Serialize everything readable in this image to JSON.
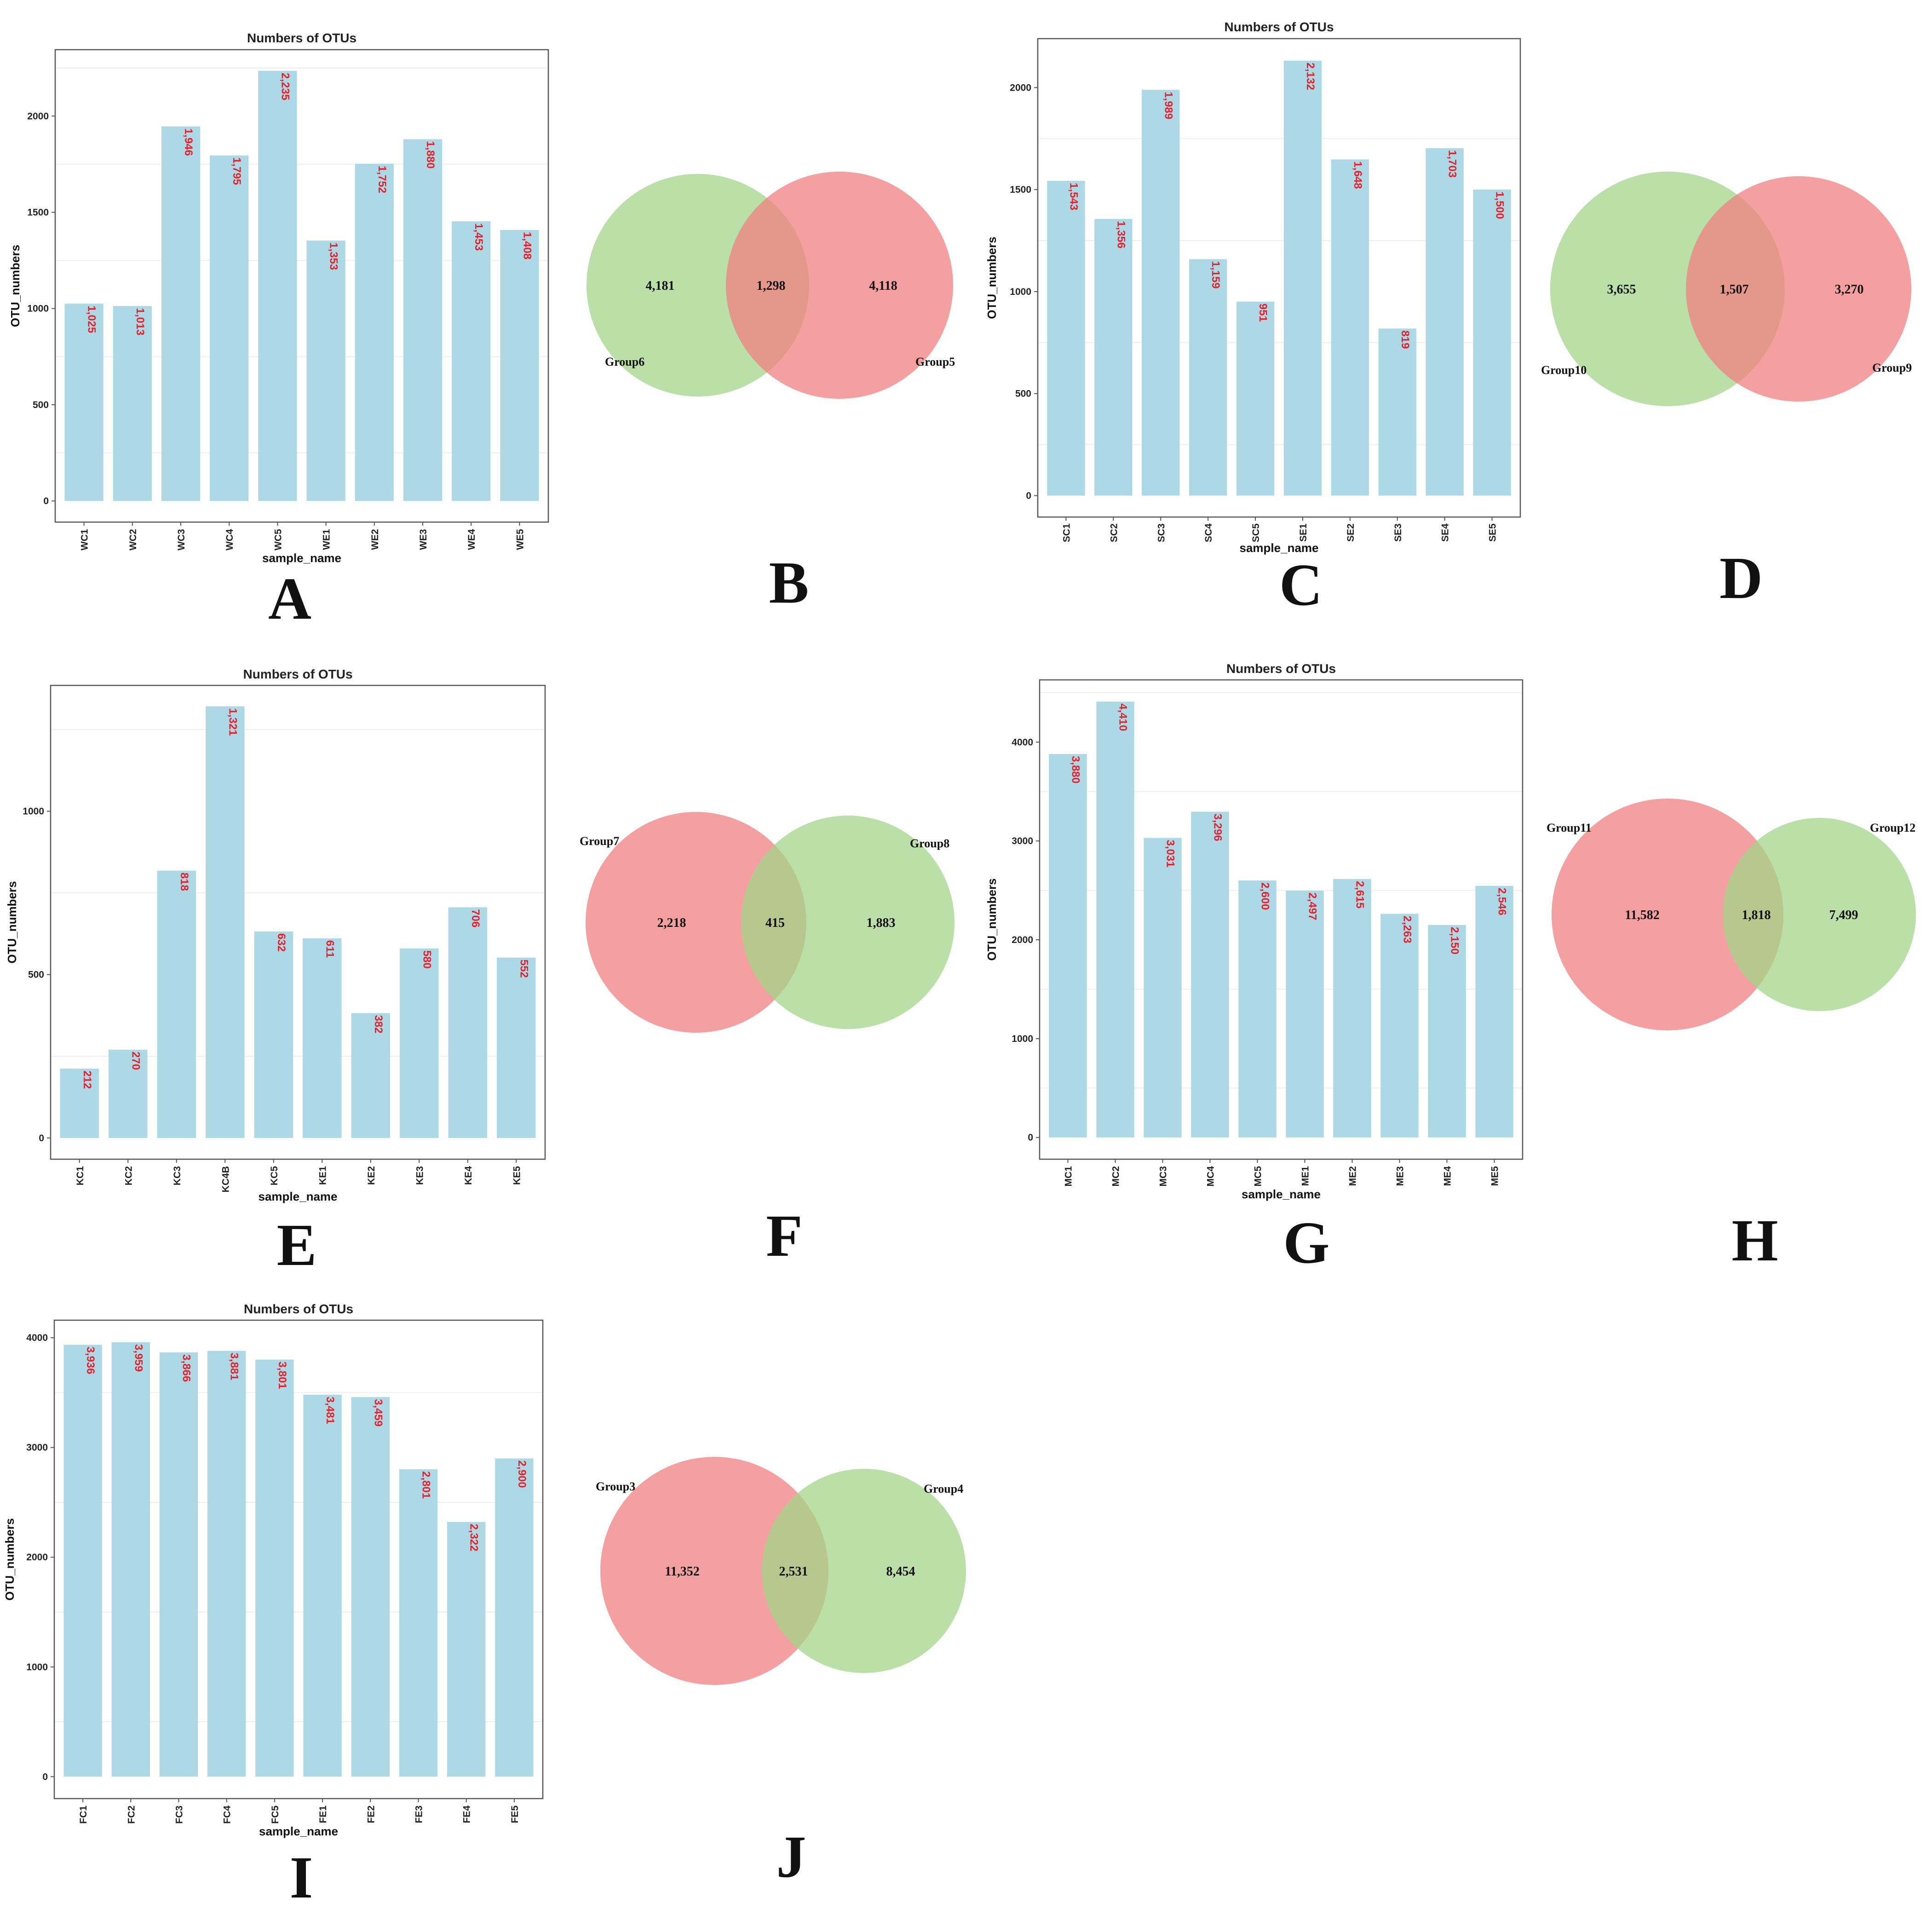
{
  "colors": {
    "bar": "#add8e6",
    "data_label": "#e8202a",
    "venn_red": "#f08080",
    "venn_green": "#a3d68a",
    "frame": "#555555",
    "gridline": "#eeeeee"
  },
  "panel_letters": [
    "A",
    "B",
    "C",
    "D",
    "E",
    "F",
    "G",
    "H",
    "I",
    "J"
  ],
  "chart_data": [
    {
      "panel": "A",
      "type": "bar",
      "title": "Numbers of OTUs",
      "xlabel": "sample_name",
      "ylabel": "OTU_numbers",
      "categories": [
        "WC1",
        "WC2",
        "WC3",
        "WC4",
        "WC5",
        "WE1",
        "WE2",
        "WE3",
        "WE4",
        "WE5"
      ],
      "values": [
        1025,
        1013,
        1946,
        1795,
        2235,
        1353,
        1752,
        1880,
        1453,
        1408
      ],
      "value_labels": [
        "1,025",
        "1,013",
        "1,946",
        "1,795",
        "2,235",
        "1,353",
        "1,752",
        "1,880",
        "1,453",
        "1,408"
      ],
      "yticks": [
        0,
        500,
        1000,
        1500,
        2000
      ],
      "ytick_labels": [
        "0",
        "500",
        "1000",
        "1500",
        "2000"
      ],
      "ylim": [
        -110,
        2345
      ]
    },
    {
      "panel": "C",
      "type": "bar",
      "title": "Numbers of OTUs",
      "xlabel": "sample_name",
      "ylabel": "OTU_numbers",
      "categories": [
        "SC1",
        "SC2",
        "SC3",
        "SC4",
        "SC5",
        "SE1",
        "SE2",
        "SE3",
        "SE4",
        "SE5"
      ],
      "values": [
        1543,
        1356,
        1989,
        1159,
        951,
        2132,
        1648,
        819,
        1703,
        1500
      ],
      "value_labels": [
        "1,543",
        "1,356",
        "1,989",
        "1,159",
        "951",
        "2,132",
        "1,648",
        "819",
        "1,703",
        "1,500"
      ],
      "yticks": [
        0,
        500,
        1000,
        1500,
        2000
      ],
      "ytick_labels": [
        "0",
        "500",
        "1000",
        "1500",
        "2000"
      ],
      "ylim": [
        -105,
        2240
      ]
    },
    {
      "panel": "E",
      "type": "bar",
      "title": "Numbers of OTUs",
      "xlabel": "sample_name",
      "ylabel": "OTU_numbers",
      "categories": [
        "KC1",
        "KC2",
        "KC3",
        "KC4B",
        "KC5",
        "KE1",
        "KE2",
        "KE3",
        "KE4",
        "KE5"
      ],
      "values": [
        212,
        270,
        818,
        1321,
        632,
        611,
        382,
        580,
        706,
        552
      ],
      "value_labels": [
        "212",
        "270",
        "818",
        "1,321",
        "632",
        "611",
        "382",
        "580",
        "706",
        "552"
      ],
      "yticks": [
        0,
        500,
        1000
      ],
      "ytick_labels": [
        "0",
        "500",
        "1000"
      ],
      "ylim": [
        -65,
        1385
      ]
    },
    {
      "panel": "G",
      "type": "bar",
      "title": "Numbers of OTUs",
      "xlabel": "sample_name",
      "ylabel": "OTU_numbers",
      "categories": [
        "MC1",
        "MC2",
        "MC3",
        "MC4",
        "MC5",
        "ME1",
        "ME2",
        "ME3",
        "ME4",
        "ME5"
      ],
      "values": [
        3880,
        4410,
        3031,
        3296,
        2600,
        2497,
        2615,
        2263,
        2150,
        2546
      ],
      "value_labels": [
        "3,880",
        "4,410",
        "3,031",
        "3,296",
        "2,600",
        "2,497",
        "2,615",
        "2,263",
        "2,150",
        "2,546"
      ],
      "yticks": [
        0,
        1000,
        2000,
        3000,
        4000
      ],
      "ytick_labels": [
        "0",
        "1000",
        "2000",
        "3000",
        "4000"
      ],
      "ylim": [
        -220,
        4630
      ]
    },
    {
      "panel": "I",
      "type": "bar",
      "title": "Numbers of OTUs",
      "xlabel": "sample_name",
      "ylabel": "OTU_numbers",
      "categories": [
        "FC1",
        "FC2",
        "FC3",
        "FC4",
        "FC5",
        "FE1",
        "FE2",
        "FE3",
        "FE4",
        "FE5"
      ],
      "values": [
        3936,
        3959,
        3866,
        3881,
        3801,
        3481,
        3459,
        2801,
        2322,
        2900
      ],
      "value_labels": [
        "3,936",
        "3,959",
        "3,866",
        "3,881",
        "3,801",
        "3,481",
        "3,459",
        "2,801",
        "2,322",
        "2,900"
      ],
      "yticks": [
        0,
        1000,
        2000,
        3000,
        4000
      ],
      "ytick_labels": [
        "0",
        "1000",
        "2000",
        "3000",
        "4000"
      ],
      "ylim": [
        -200,
        4160
      ]
    }
  ],
  "venn_diagrams": [
    {
      "panel": "B",
      "left": {
        "group": "Group6",
        "value": "4,181",
        "color": "green"
      },
      "overlap": "1,298",
      "right": {
        "group": "Group5",
        "value": "4,118",
        "color": "red"
      }
    },
    {
      "panel": "D",
      "left": {
        "group": "Group10",
        "value": "3,655",
        "color": "green"
      },
      "overlap": "1,507",
      "right": {
        "group": "Group9",
        "value": "3,270",
        "color": "red"
      }
    },
    {
      "panel": "F",
      "left": {
        "group": "Group7",
        "value": "2,218",
        "color": "red"
      },
      "overlap": "415",
      "right": {
        "group": "Group8",
        "value": "1,883",
        "color": "green"
      }
    },
    {
      "panel": "H",
      "left": {
        "group": "Group11",
        "value": "11,582",
        "color": "red"
      },
      "overlap": "1,818",
      "right": {
        "group": "Group12",
        "value": "7,499",
        "color": "green"
      }
    },
    {
      "panel": "J",
      "left": {
        "group": "Group3",
        "value": "11,352",
        "color": "red"
      },
      "overlap": "2,531",
      "right": {
        "group": "Group4",
        "value": "8,454",
        "color": "green"
      }
    }
  ]
}
